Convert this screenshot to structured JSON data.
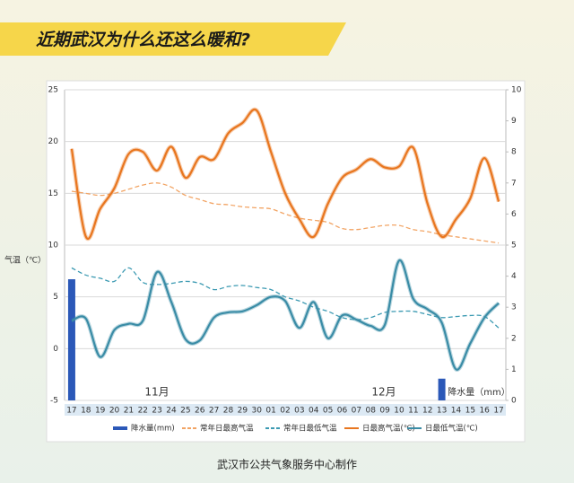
{
  "chart_data": {
    "type": "line",
    "title": "近期武汉为什么还这么暖和?",
    "source": "武汉市公共气象服务中心制作",
    "y_label": "气温（℃）",
    "y2_label": "降水量（mm）",
    "month_labels": [
      "11月",
      "12月"
    ],
    "categories": [
      "17",
      "18",
      "19",
      "20",
      "21",
      "22",
      "23",
      "24",
      "25",
      "26",
      "27",
      "28",
      "29",
      "30",
      "01",
      "02",
      "03",
      "04",
      "05",
      "06",
      "07",
      "08",
      "09",
      "10",
      "11",
      "12",
      "13",
      "14",
      "15",
      "16",
      "17"
    ],
    "ylim": [
      -5,
      25
    ],
    "yticks": [
      -5,
      0,
      5,
      10,
      15,
      20,
      25
    ],
    "y2lim": [
      0,
      10
    ],
    "y2ticks": [
      0,
      1,
      2,
      3,
      4,
      5,
      6,
      7,
      8,
      9,
      10
    ],
    "grid": true,
    "series": [
      {
        "name": "降水量(mm)",
        "type": "bar",
        "axis": "y2",
        "color": "#2b58b8",
        "values": [
          3.9,
          0,
          0,
          0,
          0,
          0,
          0,
          0,
          0,
          0,
          0,
          0,
          0,
          0,
          0,
          0,
          0,
          0,
          0,
          0,
          0,
          0,
          0,
          0,
          0,
          0,
          0.7,
          0,
          0,
          0,
          0
        ]
      },
      {
        "name": "常年日最高气温",
        "type": "line",
        "dashed": true,
        "color": "#f2a464",
        "values": [
          15.2,
          15.0,
          14.8,
          15.0,
          15.4,
          15.8,
          16.0,
          15.6,
          14.8,
          14.4,
          14.0,
          13.9,
          13.7,
          13.6,
          13.5,
          13.0,
          12.6,
          12.4,
          12.2,
          11.6,
          11.5,
          11.7,
          11.9,
          11.9,
          11.5,
          11.3,
          11.0,
          10.8,
          10.6,
          10.4,
          10.2
        ]
      },
      {
        "name": "常年日最低气温",
        "type": "line",
        "dashed": true,
        "color": "#3c9ab2",
        "values": [
          7.8,
          7.1,
          6.8,
          6.5,
          7.8,
          6.4,
          6.2,
          6.3,
          6.5,
          6.3,
          5.7,
          6.0,
          6.1,
          5.9,
          5.7,
          5.0,
          4.6,
          4.0,
          3.6,
          3.0,
          2.8,
          3.0,
          3.5,
          3.6,
          3.6,
          3.3,
          3.0,
          3.1,
          3.2,
          3.1,
          2.0
        ]
      },
      {
        "name": "日最高气温(℃)",
        "type": "line",
        "color": "#e8761f",
        "values": [
          19.3,
          10.8,
          13.5,
          15.5,
          18.8,
          19.0,
          17.2,
          19.5,
          16.5,
          18.5,
          18.3,
          20.8,
          21.8,
          23.0,
          19.0,
          15.0,
          12.5,
          10.8,
          14.0,
          16.5,
          17.3,
          18.3,
          17.5,
          17.6,
          19.4,
          14.0,
          10.8,
          12.5,
          14.5,
          18.4,
          14.2
        ]
      },
      {
        "name": "日最低气温(℃)",
        "type": "line",
        "color": "#3a8ca6",
        "values": [
          2.7,
          2.9,
          -0.8,
          1.8,
          2.4,
          2.7,
          7.4,
          4.5,
          0.9,
          0.8,
          3.0,
          3.5,
          3.6,
          4.2,
          5.0,
          4.6,
          2.0,
          4.5,
          1.0,
          3.2,
          2.8,
          2.2,
          2.3,
          8.5,
          4.8,
          3.8,
          2.5,
          -2.0,
          0.5,
          3.0,
          4.4
        ]
      }
    ]
  }
}
